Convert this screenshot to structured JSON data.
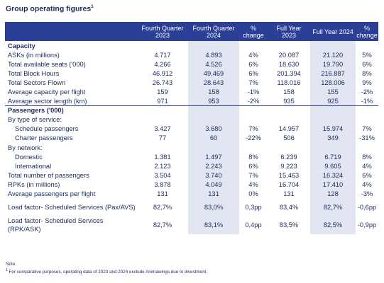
{
  "title": "Group operating figures",
  "title_sup": "1",
  "columns": [
    "",
    "Fourth Quarter\n2023",
    "Fourth Quarter\n2024",
    "%\nchange",
    "Full Year\n2023",
    "Full Year 2024",
    "%\nchange"
  ],
  "rows": [
    {
      "label": "Capacity",
      "type": "section",
      "values": [
        "",
        "",
        "",
        "",
        "",
        ""
      ]
    },
    {
      "label": "ASKs (in millions)",
      "type": "item",
      "values": [
        "4.717",
        "4.893",
        "4%",
        "20.087",
        "21.120",
        "5%"
      ]
    },
    {
      "label": "Total available seats ('000)",
      "type": "item",
      "values": [
        "4.266",
        "4.526",
        "6%",
        "18.630",
        "19.790",
        "6%"
      ]
    },
    {
      "label": "Total Block Hours",
      "type": "item",
      "values": [
        "46.912",
        "49.469",
        "6%",
        "201.394",
        "216.887",
        "8%"
      ]
    },
    {
      "label": "Total Sectors Flown",
      "type": "item",
      "values": [
        "26.743",
        "28.643",
        "7%",
        "118.016",
        "128.006",
        "9%"
      ]
    },
    {
      "label": "Average capacity per flight",
      "type": "item",
      "values": [
        "159",
        "158",
        "-1%",
        "158",
        "155",
        "-2%"
      ]
    },
    {
      "label": "Average sector length (km)",
      "type": "item",
      "values": [
        "971",
        "953",
        "-2%",
        "935",
        "925",
        "-1%"
      ]
    },
    {
      "label": "Passengers ('000)",
      "type": "section-top",
      "values": [
        "",
        "",
        "",
        "",
        "",
        ""
      ]
    },
    {
      "label": "By type of service:",
      "type": "plain",
      "values": [
        "",
        "",
        "",
        "",
        "",
        ""
      ]
    },
    {
      "label": "Schedule passengers",
      "type": "indent",
      "values": [
        "3.427",
        "3.680",
        "7%",
        "14.957",
        "15.974",
        "7%"
      ]
    },
    {
      "label": "Charter passengers",
      "type": "indent",
      "values": [
        "77",
        "60",
        "-22%",
        "506",
        "349",
        "-31%"
      ]
    },
    {
      "label": "By network:",
      "type": "plain",
      "values": [
        "",
        "",
        "",
        "",
        "",
        ""
      ]
    },
    {
      "label": "Domestic",
      "type": "indent",
      "values": [
        "1.381",
        "1.497",
        "8%",
        "6.239",
        "6.719",
        "8%"
      ]
    },
    {
      "label": "International",
      "type": "indent",
      "values": [
        "2.123",
        "2.243",
        "6%",
        "9.223",
        "9.605",
        "4%"
      ]
    },
    {
      "label": "Total number of passengers",
      "type": "plain",
      "values": [
        "3.504",
        "3.740",
        "7%",
        "15.463",
        "16.324",
        "6%"
      ]
    },
    {
      "label": "RPKs (in millions)",
      "type": "plain",
      "values": [
        "3.878",
        "4.049",
        "4%",
        "16.704",
        "17.410",
        "4%"
      ]
    },
    {
      "label": "Average passengers per flight",
      "type": "plain",
      "values": [
        "131",
        "131",
        "0%",
        "131",
        "128",
        "-3%"
      ]
    },
    {
      "label": "Load factor- Scheduled Services (Pax/AVS)",
      "type": "tall",
      "values": [
        "82,7%",
        "83,0%",
        "0,3pp",
        "83,4%",
        "82,7%",
        "-0,6pp"
      ]
    },
    {
      "label": "Load factor- Scheduled Services (RPK/ASK)",
      "type": "tall",
      "values": [
        "82,7%",
        "83,1%",
        "0,4pp",
        "83,5%",
        "82,5%",
        "-0,9pp"
      ]
    }
  ],
  "note": {
    "heading": "Note:",
    "sup": "1",
    "text": "For comparative purposes, operating data of 2023 and 2024 exclude Animawings due to divestment."
  },
  "colors": {
    "header_bg": "#2b3f97",
    "highlight_bg": "#e2e6f3",
    "text": "#1c2a5c"
  }
}
